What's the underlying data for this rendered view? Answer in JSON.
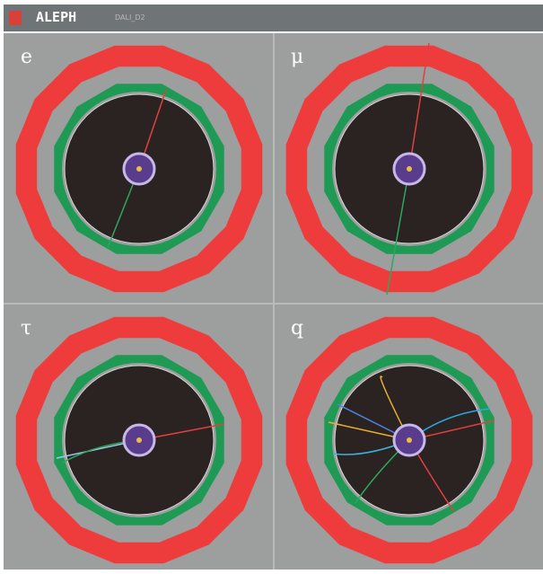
{
  "header": {
    "title": "ALEPH",
    "subtitle": "DALI_D2"
  },
  "panels": [
    {
      "label": "e"
    },
    {
      "label": "μ"
    },
    {
      "label": "τ"
    },
    {
      "label": "q"
    }
  ]
}
